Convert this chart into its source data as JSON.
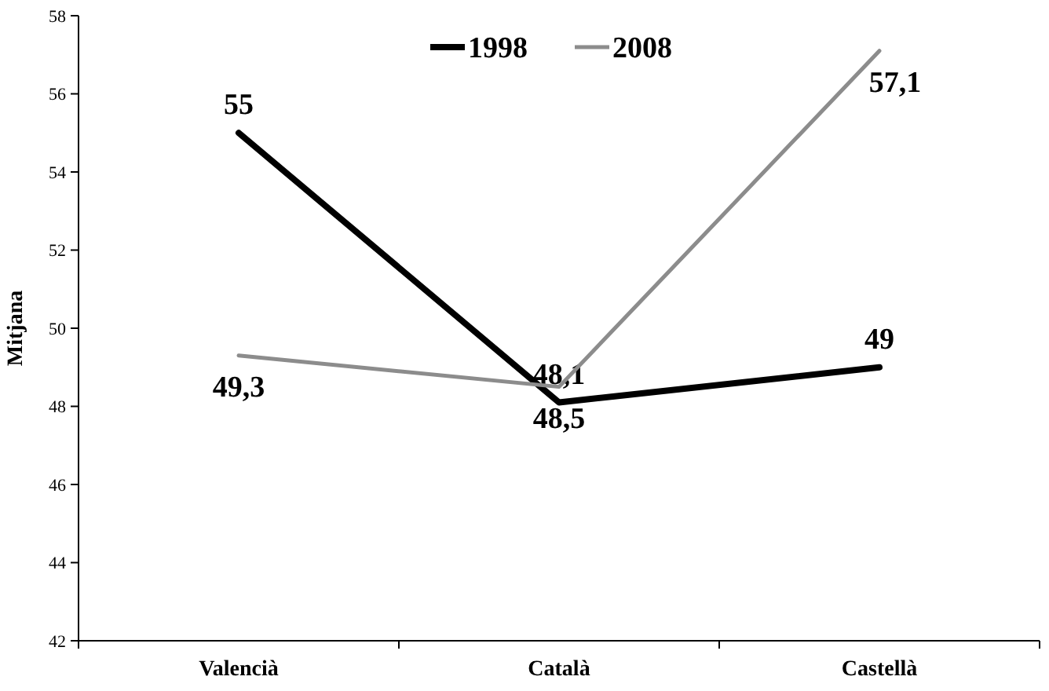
{
  "chart_data": {
    "type": "line",
    "ylabel": "Mitjana",
    "categories": [
      "Valencià",
      "Català",
      "Castellà"
    ],
    "series": [
      {
        "name": "1998",
        "color": "#000000",
        "values": [
          55,
          48.1,
          49
        ],
        "value_labels": [
          "55",
          "48,1",
          "49"
        ]
      },
      {
        "name": "2008",
        "color": "#8c8c8c",
        "values": [
          49.3,
          48.5,
          57.1
        ],
        "value_labels": [
          "49,3",
          "48,5",
          "57,1"
        ]
      }
    ],
    "ylim": [
      42,
      58
    ],
    "yticks": [
      42,
      44,
      46,
      48,
      50,
      52,
      54,
      56,
      58
    ],
    "grid": false,
    "legend": "top",
    "marker": "none",
    "line_style": "solid"
  }
}
